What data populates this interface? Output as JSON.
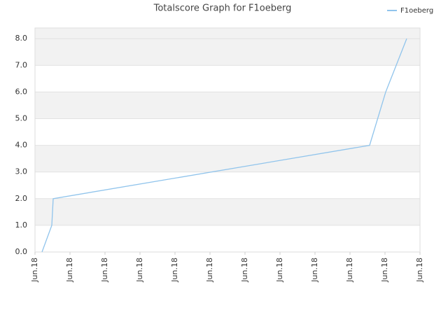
{
  "chart_data": {
    "type": "line",
    "title": "Totalscore Graph for F1oeberg",
    "x": [
      0.2,
      0.48,
      0.52,
      9.56,
      10.02,
      10.62
    ],
    "series": [
      {
        "name": "F1oeberg",
        "color": "#90c4ec",
        "values": [
          0,
          1,
          2,
          4,
          6,
          8
        ]
      }
    ],
    "xlim": [
      0,
      11
    ],
    "xticks": [
      {
        "value": 0,
        "label": "Jun.18"
      },
      {
        "value": 1,
        "label": "Jun.18"
      },
      {
        "value": 2,
        "label": "Jun.18"
      },
      {
        "value": 3,
        "label": "Jun.18"
      },
      {
        "value": 4,
        "label": "Jun.18"
      },
      {
        "value": 5,
        "label": "Jun.18"
      },
      {
        "value": 6,
        "label": "Jun.18"
      },
      {
        "value": 7,
        "label": "Jun.18"
      },
      {
        "value": 8,
        "label": "Jun.18"
      },
      {
        "value": 9,
        "label": "Jun.18"
      },
      {
        "value": 10,
        "label": "Jun.18"
      },
      {
        "value": 11,
        "label": "Jun.18"
      }
    ],
    "ylim": [
      0,
      8.4
    ],
    "yticks": [
      {
        "value": 0,
        "label": "0.0"
      },
      {
        "value": 1,
        "label": "1.0"
      },
      {
        "value": 2,
        "label": "2.0"
      },
      {
        "value": 3,
        "label": "3.0"
      },
      {
        "value": 4,
        "label": "4.0"
      },
      {
        "value": 5,
        "label": "5.0"
      },
      {
        "value": 6,
        "label": "6.0"
      },
      {
        "value": 7,
        "label": "7.0"
      },
      {
        "value": 8,
        "label": "8.0"
      }
    ],
    "grid": true,
    "legend": "top-right"
  }
}
